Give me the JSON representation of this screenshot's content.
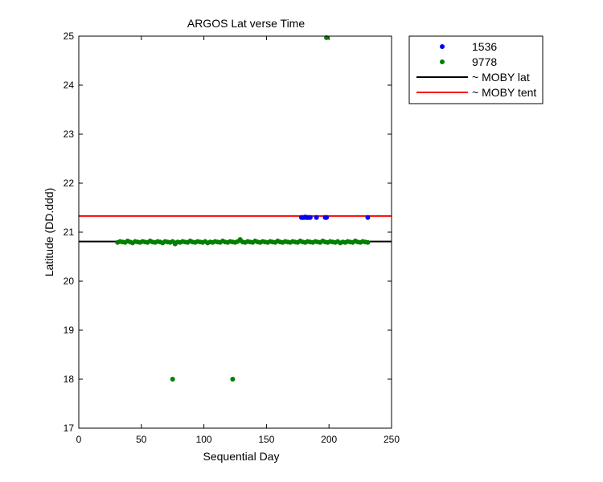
{
  "chart_data": {
    "type": "scatter",
    "title": "ARGOS Lat verse Time",
    "xlabel": "Sequential Day",
    "ylabel": "Latitude (DD.ddd)",
    "xlim": [
      0,
      250
    ],
    "ylim": [
      17,
      25
    ],
    "xticks": [
      0,
      50,
      100,
      150,
      200,
      250
    ],
    "yticks": [
      17,
      18,
      19,
      20,
      21,
      22,
      23,
      24,
      25
    ],
    "grid": false,
    "legend_position": "outside-top-right",
    "series": [
      {
        "name": "1536",
        "kind": "points",
        "color": "#0000ff",
        "x": [
          178,
          179,
          180,
          181,
          182,
          183,
          184,
          185,
          190,
          197,
          198,
          231
        ],
        "y": [
          21.3,
          21.3,
          21.3,
          21.31,
          21.3,
          21.3,
          21.3,
          21.3,
          21.3,
          21.3,
          21.3,
          21.3
        ]
      },
      {
        "name": "9778",
        "kind": "points",
        "color": "#008000",
        "x": [
          31,
          33,
          35,
          37,
          39,
          41,
          43,
          45,
          47,
          49,
          51,
          53,
          55,
          57,
          59,
          61,
          63,
          65,
          67,
          69,
          71,
          73,
          75,
          77,
          79,
          81,
          83,
          85,
          87,
          89,
          91,
          93,
          95,
          97,
          99,
          101,
          103,
          105,
          107,
          109,
          111,
          113,
          115,
          117,
          119,
          121,
          123,
          125,
          127,
          129,
          131,
          133,
          135,
          137,
          139,
          141,
          143,
          145,
          147,
          149,
          151,
          153,
          155,
          157,
          159,
          161,
          163,
          165,
          167,
          169,
          171,
          173,
          175,
          177,
          179,
          181,
          183,
          185,
          187,
          189,
          191,
          193,
          195,
          197,
          199,
          201,
          203,
          205,
          207,
          209,
          211,
          213,
          215,
          217,
          219,
          221,
          223,
          225,
          227,
          229,
          231,
          75,
          123,
          198
        ],
        "y": [
          20.79,
          20.81,
          20.8,
          20.79,
          20.82,
          20.8,
          20.78,
          20.81,
          20.8,
          20.79,
          20.81,
          20.8,
          20.79,
          20.82,
          20.8,
          20.79,
          20.81,
          20.8,
          20.78,
          20.81,
          20.8,
          20.79,
          20.81,
          20.76,
          20.8,
          20.79,
          20.81,
          20.8,
          20.79,
          20.82,
          20.8,
          20.79,
          20.81,
          20.8,
          20.79,
          20.81,
          20.78,
          20.8,
          20.79,
          20.81,
          20.8,
          20.79,
          20.82,
          20.8,
          20.79,
          20.81,
          20.8,
          20.79,
          20.81,
          20.85,
          20.8,
          20.79,
          20.81,
          20.8,
          20.79,
          20.82,
          20.8,
          20.79,
          20.81,
          20.8,
          20.79,
          20.81,
          20.8,
          20.79,
          20.82,
          20.8,
          20.79,
          20.81,
          20.8,
          20.79,
          20.81,
          20.8,
          20.79,
          20.82,
          20.8,
          20.79,
          20.81,
          20.8,
          20.79,
          20.81,
          20.8,
          20.79,
          20.82,
          20.8,
          20.79,
          20.81,
          20.8,
          20.79,
          20.81,
          20.78,
          20.8,
          20.79,
          20.81,
          20.8,
          20.79,
          20.82,
          20.8,
          20.79,
          20.81,
          20.8,
          20.79,
          18.0,
          18.0,
          24.97
        ]
      },
      {
        "name": "~ MOBY lat",
        "kind": "hline",
        "color": "#000000",
        "y": 20.81
      },
      {
        "name": "~ MOBY tent",
        "kind": "hline",
        "color": "#ff0000",
        "y": 21.33
      }
    ]
  }
}
